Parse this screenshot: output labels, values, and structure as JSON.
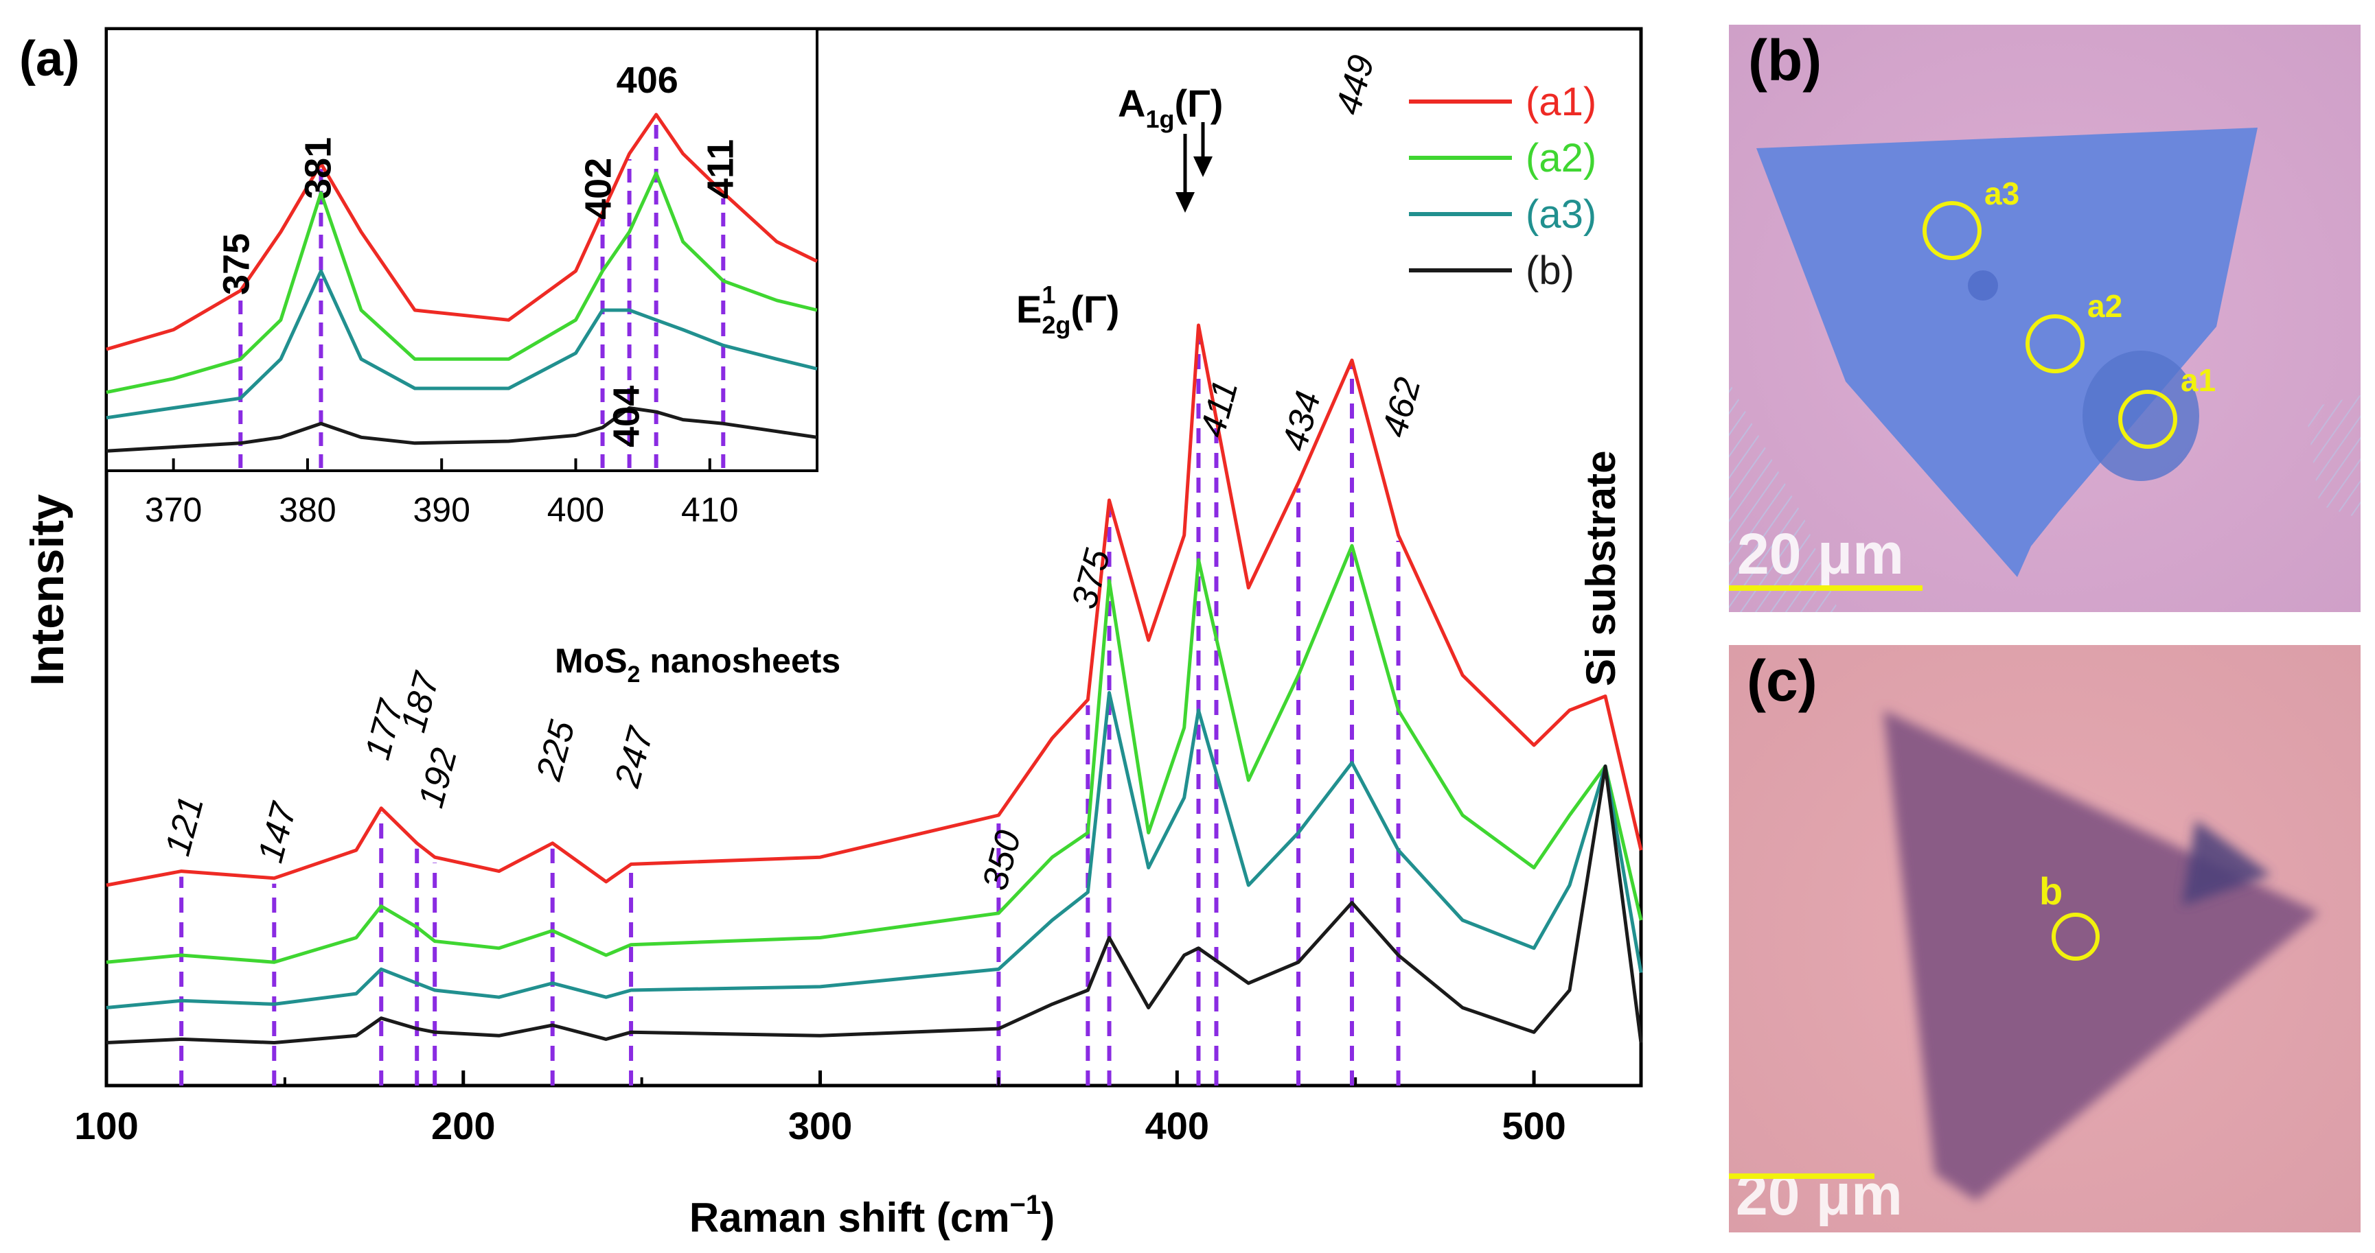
{
  "panel_a": {
    "label": "(a)",
    "xlabel_main": "Raman shift (cm",
    "xlabel_sup": "−1",
    "xlabel_close": ")",
    "ylabel": "Intensity",
    "sample_main": "MoS",
    "sample_sub": "2",
    "sample_rest": " nanosheets",
    "mode_e_main": "E",
    "mode_e_sup": "1",
    "mode_e_sub": "2g",
    "mode_e_arg": "(Γ)",
    "mode_a_main": "A",
    "mode_a_sub": "1g",
    "mode_a_arg": "(Γ)",
    "si_label": "Si substrate"
  },
  "chart_data": [
    {
      "type": "line",
      "title": "",
      "xlabel": "Raman shift (cm−1)",
      "ylabel": "Intensity",
      "xlim": [
        100,
        530
      ],
      "xticks": [
        100,
        200,
        300,
        400,
        500
      ],
      "series": [
        {
          "name": "(a1)",
          "color": "#ee2a24",
          "x": [
            100,
            121,
            147,
            170,
            177,
            187,
            192,
            210,
            225,
            240,
            247,
            300,
            350,
            365,
            375,
            381,
            392,
            402,
            406,
            420,
            434,
            449,
            462,
            480,
            500,
            510,
            520,
            530
          ],
          "y": [
            50,
            54,
            52,
            60,
            72,
            62,
            58,
            54,
            62,
            51,
            56,
            58,
            70,
            92,
            103,
            160,
            120,
            150,
            210,
            135,
            165,
            200,
            150,
            110,
            90,
            100,
            104,
            60
          ]
        },
        {
          "name": "(a2)",
          "color": "#3fd631",
          "x": [
            100,
            121,
            147,
            170,
            177,
            187,
            192,
            210,
            225,
            240,
            247,
            300,
            350,
            365,
            375,
            381,
            392,
            402,
            406,
            420,
            434,
            449,
            462,
            480,
            500,
            510,
            520,
            530
          ],
          "y": [
            28,
            30,
            28,
            35,
            44,
            38,
            34,
            32,
            37,
            30,
            33,
            35,
            42,
            58,
            65,
            137,
            65,
            95,
            143,
            80,
            110,
            147,
            100,
            70,
            55,
            70,
            84,
            40
          ]
        },
        {
          "name": "(a3)",
          "color": "#21908f",
          "x": [
            100,
            121,
            147,
            170,
            177,
            187,
            192,
            210,
            225,
            240,
            247,
            300,
            350,
            365,
            375,
            381,
            392,
            402,
            406,
            420,
            434,
            449,
            462,
            480,
            500,
            510,
            520,
            530
          ],
          "y": [
            15,
            17,
            16,
            19,
            26,
            22,
            20,
            18,
            22,
            18,
            20,
            21,
            26,
            40,
            48,
            105,
            55,
            75,
            100,
            50,
            65,
            85,
            60,
            40,
            32,
            50,
            84,
            25
          ]
        },
        {
          "name": "(b)",
          "color": "#1a1a1a",
          "x": [
            100,
            121,
            147,
            170,
            177,
            187,
            192,
            210,
            225,
            240,
            247,
            300,
            350,
            365,
            375,
            381,
            392,
            402,
            406,
            420,
            434,
            449,
            462,
            480,
            500,
            510,
            520,
            530
          ],
          "y": [
            5,
            6,
            5,
            7,
            12,
            9,
            8,
            7,
            10,
            6,
            8,
            7,
            9,
            16,
            20,
            35,
            15,
            30,
            32,
            22,
            28,
            45,
            30,
            15,
            8,
            20,
            84,
            5
          ]
        }
      ],
      "legend": {
        "position": "top-right",
        "entries": [
          "(a1)",
          "(a2)",
          "(a3)",
          "(b)"
        ]
      },
      "peak_markers": [
        121,
        147,
        177,
        187,
        192,
        225,
        247,
        350,
        375,
        381,
        406,
        411,
        434,
        449,
        462
      ],
      "peak_labels": [
        "121",
        "147",
        "177",
        "187",
        "192",
        "225",
        "247",
        "350",
        "375",
        "411",
        "434",
        "449",
        "462"
      ]
    },
    {
      "type": "line",
      "title": "inset",
      "xlim": [
        365,
        418
      ],
      "xticks": [
        370,
        380,
        390,
        400,
        410
      ],
      "series": [
        {
          "name": "(a1)",
          "color": "#ee2a24",
          "x": [
            365,
            370,
            375,
            378,
            381,
            384,
            388,
            395,
            400,
            402,
            404,
            406,
            408,
            411,
            415,
            418
          ],
          "y": [
            60,
            70,
            90,
            120,
            155,
            120,
            80,
            75,
            100,
            130,
            160,
            180,
            160,
            140,
            115,
            105
          ]
        },
        {
          "name": "(a2)",
          "color": "#3fd631",
          "x": [
            365,
            370,
            375,
            378,
            381,
            384,
            388,
            395,
            400,
            402,
            404,
            406,
            408,
            411,
            415,
            418
          ],
          "y": [
            38,
            45,
            55,
            75,
            140,
            80,
            55,
            55,
            75,
            100,
            120,
            150,
            115,
            95,
            85,
            80
          ]
        },
        {
          "name": "(a3)",
          "color": "#21908f",
          "x": [
            365,
            370,
            375,
            378,
            381,
            384,
            388,
            395,
            400,
            402,
            404,
            406,
            408,
            411,
            415,
            418
          ],
          "y": [
            25,
            30,
            35,
            55,
            100,
            55,
            40,
            40,
            58,
            80,
            80,
            75,
            70,
            62,
            55,
            50
          ]
        },
        {
          "name": "(b)",
          "color": "#1a1a1a",
          "x": [
            365,
            370,
            375,
            378,
            381,
            384,
            388,
            395,
            400,
            402,
            404,
            406,
            408,
            411,
            415,
            418
          ],
          "y": [
            8,
            10,
            12,
            15,
            22,
            15,
            12,
            13,
            16,
            20,
            30,
            28,
            24,
            22,
            18,
            15
          ]
        }
      ],
      "peak_labels": [
        "375",
        "381",
        "402",
        "406",
        "411",
        "404"
      ],
      "peak_markers": [
        375,
        381,
        402,
        404,
        406,
        411
      ]
    }
  ],
  "panel_b": {
    "label": "(b)",
    "scale": "20 μm",
    "spots": [
      "a3",
      "a2",
      "a1"
    ],
    "colors": {
      "background": "#d9a7cc",
      "flake": "#6a86dc",
      "marker": "#f2f20c"
    }
  },
  "panel_c": {
    "label": "(c)",
    "scale": "20 μm",
    "spots": [
      "b"
    ],
    "colors": {
      "background": "#e2a5ae",
      "flake": "#8a5c86",
      "marker": "#f2f20c"
    }
  }
}
